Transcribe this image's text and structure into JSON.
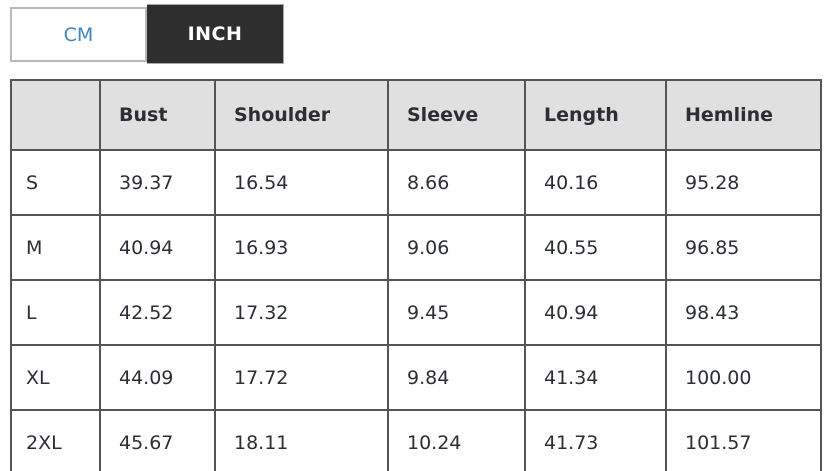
{
  "units_toggle": {
    "cm_label": "CM",
    "inch_label": "INCH",
    "active_unit": "INCH"
  },
  "colors": {
    "active_tab_bg": "#2e2e2e",
    "active_tab_text": "#ffffff",
    "inactive_tab_text": "#4084c1",
    "table_border": "#545454",
    "header_row_bg": "#e0e0e0",
    "body_text": "#2c2e36"
  },
  "size_chart": {
    "columns": [
      "",
      "Bust",
      "Shoulder",
      "Sleeve",
      "Length",
      "Hemline"
    ],
    "rows": [
      {
        "size": "S",
        "values": [
          "39.37",
          "16.54",
          "8.66",
          "40.16",
          "95.28"
        ]
      },
      {
        "size": "M",
        "values": [
          "40.94",
          "16.93",
          "9.06",
          "40.55",
          "96.85"
        ]
      },
      {
        "size": "L",
        "values": [
          "42.52",
          "17.32",
          "9.45",
          "40.94",
          "98.43"
        ]
      },
      {
        "size": "XL",
        "values": [
          "44.09",
          "17.72",
          "9.84",
          "41.34",
          "100.00"
        ]
      },
      {
        "size": "2XL",
        "values": [
          "45.67",
          "18.11",
          "10.24",
          "41.73",
          "101.57"
        ]
      }
    ]
  }
}
